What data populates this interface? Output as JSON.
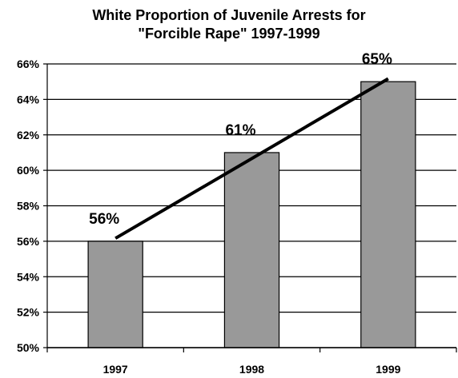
{
  "chart_data": {
    "type": "bar",
    "title_line1": "White Proportion of Juvenile Arrests for",
    "title_line2": "\"Forcible Rape\" 1997-1999",
    "categories": [
      "1997",
      "1998",
      "1999"
    ],
    "values": [
      56,
      61,
      65
    ],
    "data_labels": [
      "56%",
      "61%",
      "65%"
    ],
    "ylim": [
      50,
      66
    ],
    "yticks": [
      "50%",
      "52%",
      "54%",
      "56%",
      "58%",
      "60%",
      "62%",
      "64%",
      "66%"
    ],
    "grid": true,
    "trendline": true,
    "bar_color": "#999999",
    "line_color": "#000000"
  }
}
